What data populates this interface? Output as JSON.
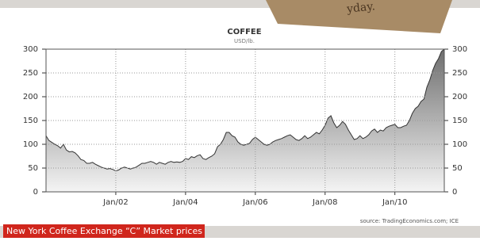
{
  "note": "yday.",
  "caption": "New York Coffee Exchange “C” Market prices",
  "chart_data": {
    "type": "area",
    "title": "COFFEE",
    "subtitle": "USD/lb.",
    "source": "source: TradingEconomics.com; ICE",
    "color": "#333333",
    "fill": "#9a9a9a",
    "grid": true,
    "x": [
      "2000-01",
      "2000-02",
      "2000-03",
      "2000-04",
      "2000-05",
      "2000-06",
      "2000-07",
      "2000-08",
      "2000-09",
      "2000-10",
      "2000-11",
      "2000-12",
      "2001-01",
      "2001-02",
      "2001-03",
      "2001-04",
      "2001-05",
      "2001-06",
      "2001-07",
      "2001-08",
      "2001-09",
      "2001-10",
      "2001-11",
      "2001-12",
      "2002-01",
      "2002-02",
      "2002-03",
      "2002-04",
      "2002-05",
      "2002-06",
      "2002-07",
      "2002-08",
      "2002-09",
      "2002-10",
      "2002-11",
      "2002-12",
      "2003-01",
      "2003-02",
      "2003-03",
      "2003-04",
      "2003-05",
      "2003-06",
      "2003-07",
      "2003-08",
      "2003-09",
      "2003-10",
      "2003-11",
      "2003-12",
      "2004-01",
      "2004-02",
      "2004-03",
      "2004-04",
      "2004-05",
      "2004-06",
      "2004-07",
      "2004-08",
      "2004-09",
      "2004-10",
      "2004-11",
      "2004-12",
      "2005-01",
      "2005-02",
      "2005-03",
      "2005-04",
      "2005-05",
      "2005-06",
      "2005-07",
      "2005-08",
      "2005-09",
      "2005-10",
      "2005-11",
      "2005-12",
      "2006-01",
      "2006-02",
      "2006-03",
      "2006-04",
      "2006-05",
      "2006-06",
      "2006-07",
      "2006-08",
      "2006-09",
      "2006-10",
      "2006-11",
      "2006-12",
      "2007-01",
      "2007-02",
      "2007-03",
      "2007-04",
      "2007-05",
      "2007-06",
      "2007-07",
      "2007-08",
      "2007-09",
      "2007-10",
      "2007-11",
      "2007-12",
      "2008-01",
      "2008-02",
      "2008-03",
      "2008-04",
      "2008-05",
      "2008-06",
      "2008-07",
      "2008-08",
      "2008-09",
      "2008-10",
      "2008-11",
      "2008-12",
      "2009-01",
      "2009-02",
      "2009-03",
      "2009-04",
      "2009-05",
      "2009-06",
      "2009-07",
      "2009-08",
      "2009-09",
      "2009-10",
      "2009-11",
      "2009-12",
      "2010-01",
      "2010-02",
      "2010-03",
      "2010-04",
      "2010-05",
      "2010-06",
      "2010-07",
      "2010-08",
      "2010-09",
      "2010-10",
      "2010-11",
      "2010-12",
      "2011-01",
      "2011-02",
      "2011-03",
      "2011-04",
      "2011-05",
      "2011-06"
    ],
    "values": [
      118,
      108,
      104,
      100,
      97,
      92,
      100,
      88,
      84,
      85,
      82,
      76,
      68,
      66,
      60,
      60,
      62,
      58,
      55,
      52,
      50,
      48,
      49,
      47,
      44,
      46,
      50,
      52,
      50,
      48,
      50,
      52,
      56,
      60,
      60,
      62,
      64,
      62,
      58,
      62,
      60,
      58,
      62,
      64,
      62,
      63,
      62,
      64,
      70,
      68,
      74,
      72,
      76,
      78,
      70,
      68,
      72,
      75,
      80,
      95,
      100,
      110,
      125,
      125,
      118,
      115,
      105,
      100,
      98,
      100,
      102,
      110,
      115,
      110,
      105,
      100,
      98,
      100,
      105,
      108,
      110,
      112,
      115,
      118,
      120,
      115,
      110,
      108,
      112,
      118,
      112,
      115,
      120,
      125,
      122,
      130,
      140,
      155,
      160,
      145,
      135,
      140,
      148,
      142,
      130,
      120,
      110,
      112,
      118,
      112,
      115,
      120,
      128,
      132,
      125,
      130,
      128,
      135,
      138,
      140,
      142,
      135,
      135,
      138,
      140,
      150,
      165,
      175,
      180,
      190,
      195,
      220,
      235,
      255,
      270,
      280,
      295,
      300
    ],
    "xlim": [
      "2000-01",
      "2011-06"
    ],
    "xticks": [
      {
        "value": "2002-01",
        "label": "Jan/02"
      },
      {
        "value": "2004-01",
        "label": "Jan/04"
      },
      {
        "value": "2006-01",
        "label": "Jan/06"
      },
      {
        "value": "2008-01",
        "label": "Jan/08"
      },
      {
        "value": "2010-01",
        "label": "Jan/10"
      }
    ],
    "ylim": [
      0,
      300
    ],
    "yticks": [
      0,
      50,
      100,
      150,
      200,
      250,
      300
    ]
  }
}
